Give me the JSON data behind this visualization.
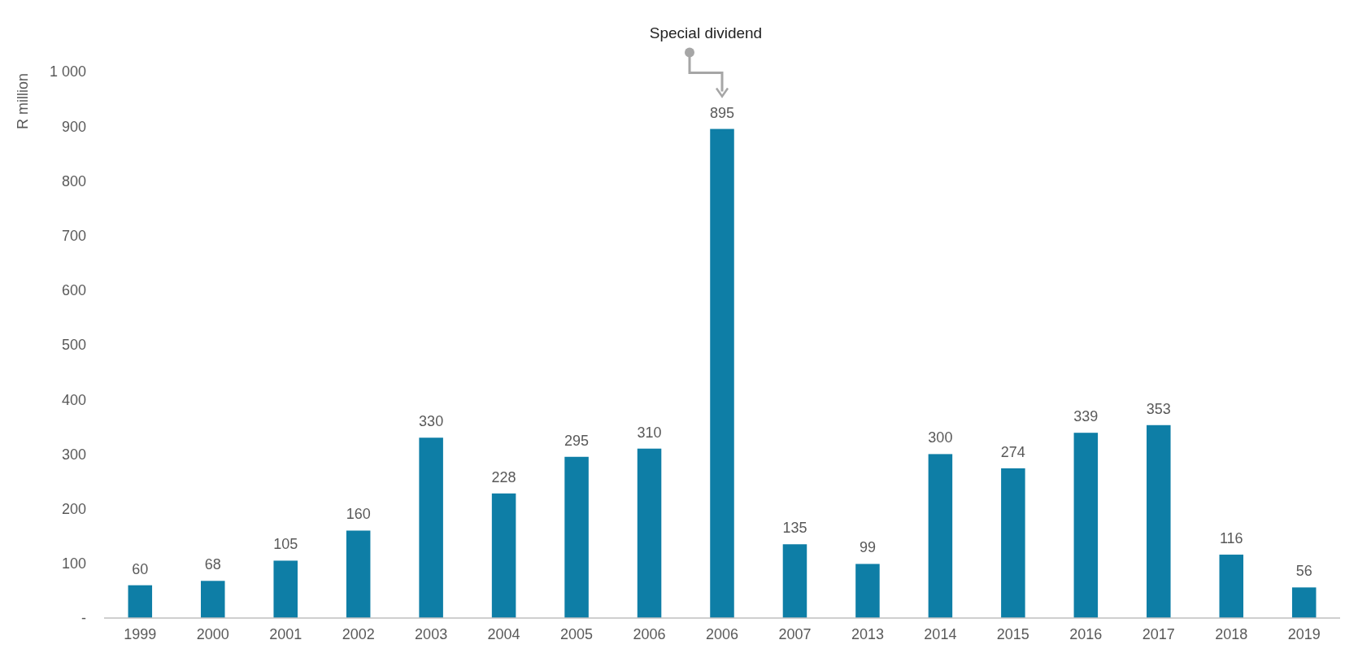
{
  "chart_data": {
    "type": "bar",
    "ylabel": "R million",
    "categories": [
      "1999",
      "2000",
      "2001",
      "2002",
      "2003",
      "2004",
      "2005",
      "2006",
      "2006",
      "2007",
      "2013",
      "2014",
      "2015",
      "2016",
      "2017",
      "2018",
      "2019"
    ],
    "values": [
      60,
      68,
      105,
      160,
      330,
      228,
      295,
      310,
      895,
      135,
      99,
      300,
      274,
      339,
      353,
      116,
      56
    ],
    "color": "#0e7ea6",
    "ylim": [
      0,
      1000
    ],
    "yticks": [
      {
        "value": 0,
        "label": "-"
      },
      100,
      200,
      300,
      400,
      500,
      600,
      700,
      800,
      900,
      {
        "value": 1000,
        "label": "1 000"
      }
    ],
    "grid": false,
    "data_labels": true,
    "annotations": [
      "Special dividend"
    ]
  }
}
